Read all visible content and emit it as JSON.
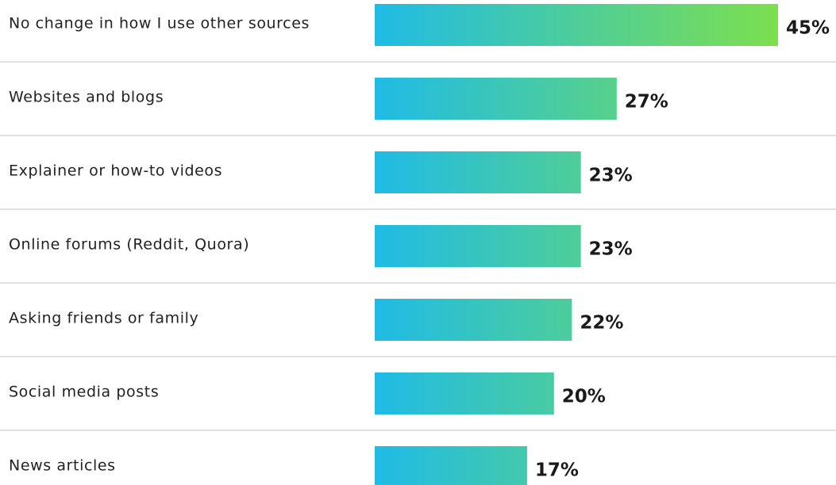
{
  "chart_data": {
    "type": "bar",
    "orientation": "horizontal",
    "categories": [
      "No change in how I use other sources",
      "Websites and blogs",
      "Explainer or how-to videos",
      "Online forums (Reddit, Quora)",
      "Asking friends or family",
      "Social media posts",
      "News articles"
    ],
    "values": [
      45,
      27,
      23,
      23,
      22,
      20,
      17
    ],
    "value_labels": [
      "45%",
      "27%",
      "23%",
      "23%",
      "22%",
      "20%",
      "17%"
    ],
    "gradient": [
      "#1fbbe6",
      "#7ddf4e"
    ]
  }
}
